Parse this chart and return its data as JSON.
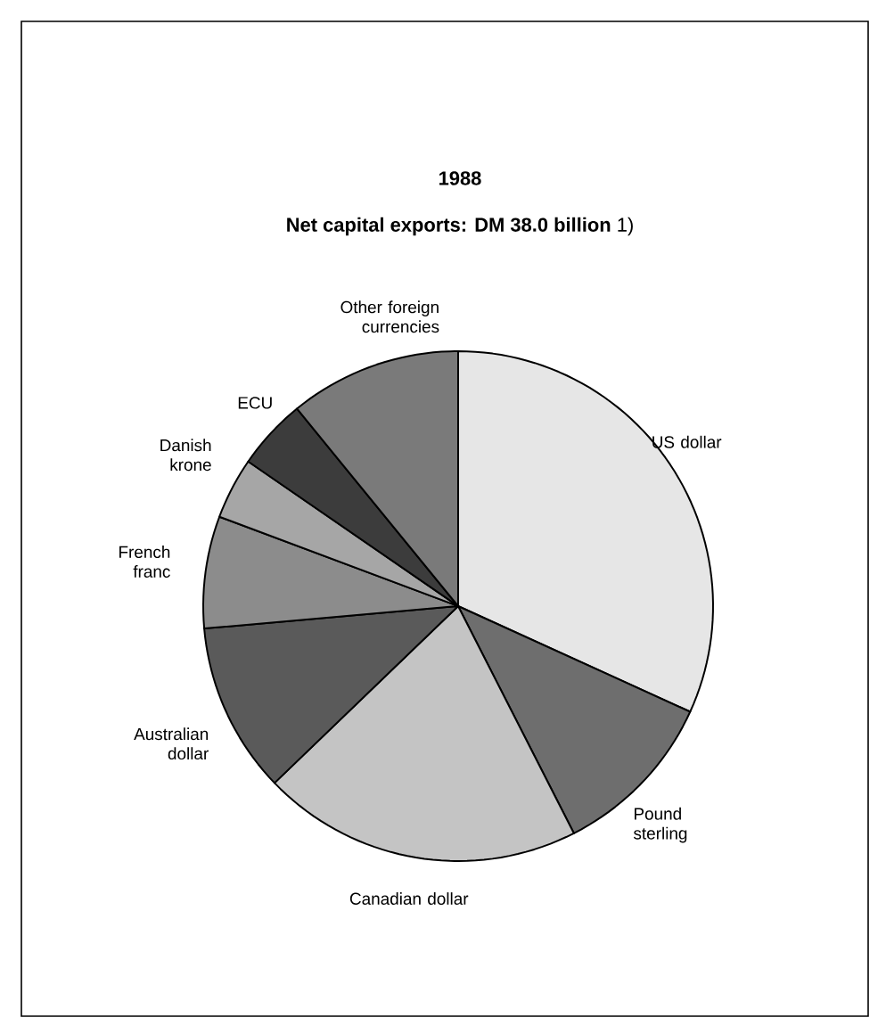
{
  "chart_data": {
    "type": "pie",
    "title": "1988",
    "subtitle": "**Net capital exports: DM 38.0 billion** 1)",
    "categories": [
      "US dollar",
      "Pound sterling",
      "Canadian dollar",
      "Australian dollar",
      "French franc",
      "Danish krone",
      "ECU",
      "Other foreign currencies"
    ],
    "values": [
      31.8,
      10.7,
      20.3,
      10.8,
      7.1,
      3.9,
      4.5,
      10.9
    ],
    "colors": [
      "#e6e6e6",
      "#6e6e6e",
      "#c4c4c4",
      "#5a5a5a",
      "#8c8c8c",
      "#a6a6a6",
      "#3c3c3c",
      "#7a7a7a"
    ]
  }
}
